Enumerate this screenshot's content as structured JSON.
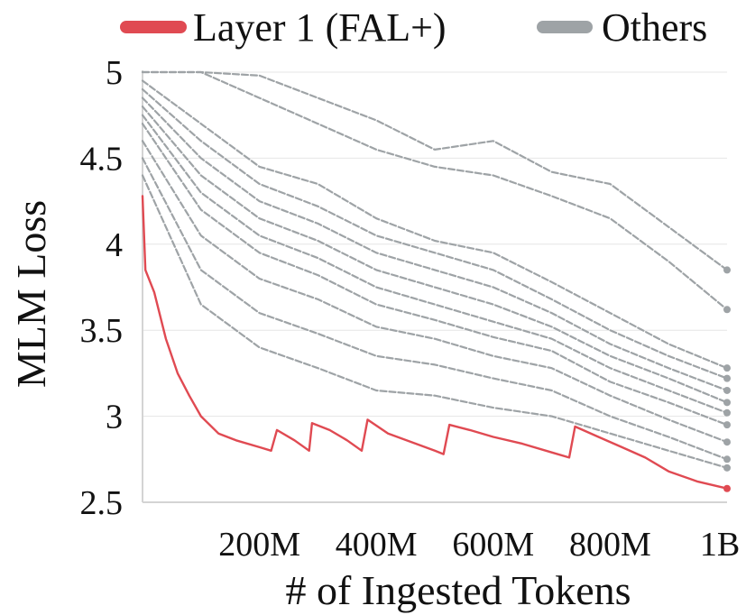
{
  "chart_data": {
    "type": "line",
    "title": "",
    "xlabel": "# of Ingested Tokens",
    "ylabel": "MLM Loss",
    "xlim": [
      0,
      1000
    ],
    "ylim": [
      2.5,
      5.0
    ],
    "x_unit": "M tokens",
    "x_ticks": [
      {
        "value": 200,
        "label": "200M"
      },
      {
        "value": 400,
        "label": "400M"
      },
      {
        "value": 600,
        "label": "600M"
      },
      {
        "value": 800,
        "label": "800M"
      },
      {
        "value": 1000,
        "label": "1B"
      }
    ],
    "y_ticks": [
      {
        "value": 2.5,
        "label": "2.5"
      },
      {
        "value": 3.0,
        "label": "3"
      },
      {
        "value": 3.5,
        "label": "3.5"
      },
      {
        "value": 4.0,
        "label": "4"
      },
      {
        "value": 4.5,
        "label": "4.5"
      },
      {
        "value": 5.0,
        "label": "5"
      }
    ],
    "grid": true,
    "legend_position": "top",
    "legend": [
      {
        "label": "Layer 1 (FAL+)",
        "color": "#e04a52"
      },
      {
        "label": "Others",
        "color": "#9ea3a6"
      }
    ],
    "series": [
      {
        "name": "Layer 1 (FAL+)",
        "color": "#e04a52",
        "x": [
          0,
          5,
          20,
          40,
          60,
          80,
          100,
          130,
          160,
          200,
          220,
          230,
          260,
          285,
          290,
          320,
          350,
          375,
          385,
          420,
          460,
          500,
          515,
          525,
          560,
          600,
          650,
          700,
          730,
          740,
          780,
          820,
          860,
          900,
          950,
          1000
        ],
        "y": [
          4.28,
          3.85,
          3.72,
          3.45,
          3.25,
          3.12,
          3.0,
          2.9,
          2.86,
          2.82,
          2.8,
          2.92,
          2.86,
          2.8,
          2.96,
          2.92,
          2.86,
          2.8,
          2.98,
          2.9,
          2.85,
          2.8,
          2.78,
          2.95,
          2.92,
          2.88,
          2.84,
          2.79,
          2.76,
          2.94,
          2.88,
          2.82,
          2.76,
          2.68,
          2.62,
          2.58
        ]
      },
      {
        "name": "Others",
        "color": "#9ea3a6",
        "x": [
          0,
          100,
          200,
          300,
          400,
          500,
          600,
          700,
          800,
          900,
          1000
        ],
        "y": [
          5.0,
          5.0,
          4.98,
          4.85,
          4.72,
          4.55,
          4.6,
          4.42,
          4.35,
          4.1,
          3.85
        ]
      },
      {
        "name": "Others",
        "color": "#9ea3a6",
        "x": [
          0,
          100,
          200,
          300,
          400,
          500,
          600,
          700,
          800,
          900,
          1000
        ],
        "y": [
          5.0,
          5.0,
          4.85,
          4.7,
          4.55,
          4.45,
          4.4,
          4.28,
          4.15,
          3.9,
          3.62
        ]
      },
      {
        "name": "Others",
        "color": "#9ea3a6",
        "x": [
          0,
          100,
          200,
          300,
          400,
          500,
          600,
          700,
          800,
          900,
          1000
        ],
        "y": [
          4.95,
          4.7,
          4.45,
          4.35,
          4.15,
          4.02,
          3.95,
          3.78,
          3.6,
          3.42,
          3.28
        ]
      },
      {
        "name": "Others",
        "color": "#9ea3a6",
        "x": [
          0,
          100,
          200,
          300,
          400,
          500,
          600,
          700,
          800,
          900,
          1000
        ],
        "y": [
          4.9,
          4.6,
          4.35,
          4.22,
          4.05,
          3.95,
          3.85,
          3.68,
          3.5,
          3.35,
          3.22
        ]
      },
      {
        "name": "Others",
        "color": "#9ea3a6",
        "x": [
          0,
          100,
          200,
          300,
          400,
          500,
          600,
          700,
          800,
          900,
          1000
        ],
        "y": [
          4.85,
          4.5,
          4.25,
          4.12,
          3.95,
          3.85,
          3.75,
          3.6,
          3.42,
          3.28,
          3.15
        ]
      },
      {
        "name": "Others",
        "color": "#9ea3a6",
        "x": [
          0,
          100,
          200,
          300,
          400,
          500,
          600,
          700,
          800,
          900,
          1000
        ],
        "y": [
          4.8,
          4.4,
          4.15,
          4.02,
          3.85,
          3.75,
          3.65,
          3.52,
          3.35,
          3.22,
          3.08
        ]
      },
      {
        "name": "Others",
        "color": "#9ea3a6",
        "x": [
          0,
          100,
          200,
          300,
          400,
          500,
          600,
          700,
          800,
          900,
          1000
        ],
        "y": [
          4.75,
          4.3,
          4.05,
          3.92,
          3.75,
          3.65,
          3.55,
          3.45,
          3.28,
          3.15,
          3.02
        ]
      },
      {
        "name": "Others",
        "color": "#9ea3a6",
        "x": [
          0,
          100,
          200,
          300,
          400,
          500,
          600,
          700,
          800,
          900,
          1000
        ],
        "y": [
          4.7,
          4.2,
          3.95,
          3.82,
          3.65,
          3.56,
          3.46,
          3.38,
          3.2,
          3.08,
          2.95
        ]
      },
      {
        "name": "Others",
        "color": "#9ea3a6",
        "x": [
          0,
          100,
          200,
          300,
          400,
          500,
          600,
          700,
          800,
          900,
          1000
        ],
        "y": [
          4.6,
          4.05,
          3.8,
          3.68,
          3.52,
          3.45,
          3.35,
          3.28,
          3.12,
          2.98,
          2.85
        ]
      },
      {
        "name": "Others",
        "color": "#9ea3a6",
        "x": [
          0,
          100,
          200,
          300,
          400,
          500,
          600,
          700,
          800,
          900,
          1000
        ],
        "y": [
          4.5,
          3.85,
          3.6,
          3.48,
          3.35,
          3.3,
          3.22,
          3.15,
          3.0,
          2.88,
          2.75
        ]
      },
      {
        "name": "Others",
        "color": "#9ea3a6",
        "x": [
          0,
          100,
          200,
          300,
          400,
          500,
          600,
          700,
          800,
          900,
          1000
        ],
        "y": [
          4.4,
          3.65,
          3.4,
          3.28,
          3.15,
          3.12,
          3.05,
          3.0,
          2.9,
          2.8,
          2.7
        ]
      }
    ]
  }
}
